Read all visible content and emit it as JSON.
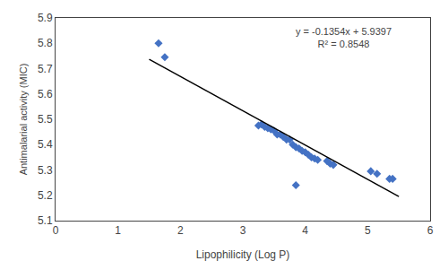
{
  "chart_data": {
    "type": "scatter",
    "xlabel": "Lipophilicity (Log P)",
    "ylabel": "Antimalarial activity (MIC)",
    "annotations": [
      "y = -0.1354x + 5.9397",
      "R² = 0.8548"
    ],
    "xlim": [
      0,
      6
    ],
    "ylim": [
      5.1,
      5.9
    ],
    "xticks": [
      0,
      1,
      2,
      3,
      4,
      5,
      6
    ],
    "yticks": [
      5.1,
      5.2,
      5.3,
      5.4,
      5.5,
      5.6,
      5.7,
      5.8,
      5.9
    ],
    "grid": false,
    "series": [
      {
        "type": "scatter",
        "color": "#4472C4",
        "marker": "diamond",
        "x": [
          1.65,
          1.75,
          3.25,
          3.3,
          3.35,
          3.4,
          3.45,
          3.5,
          3.55,
          3.6,
          3.65,
          3.7,
          3.75,
          3.8,
          3.85,
          3.9,
          3.95,
          4.0,
          4.05,
          4.1,
          4.15,
          4.2,
          4.35,
          4.4,
          4.45,
          3.85,
          5.05,
          5.15,
          5.35,
          5.4
        ],
        "values": [
          5.8,
          5.745,
          5.475,
          5.48,
          5.47,
          5.465,
          5.46,
          5.455,
          5.44,
          5.44,
          5.43,
          5.42,
          5.42,
          5.4,
          5.39,
          5.385,
          5.375,
          5.37,
          5.36,
          5.35,
          5.345,
          5.34,
          5.335,
          5.325,
          5.32,
          5.24,
          5.295,
          5.285,
          5.265,
          5.265
        ]
      },
      {
        "type": "line",
        "color": "black",
        "x": [
          1.5,
          5.5
        ],
        "values": [
          5.7366,
          5.195
        ]
      }
    ]
  }
}
